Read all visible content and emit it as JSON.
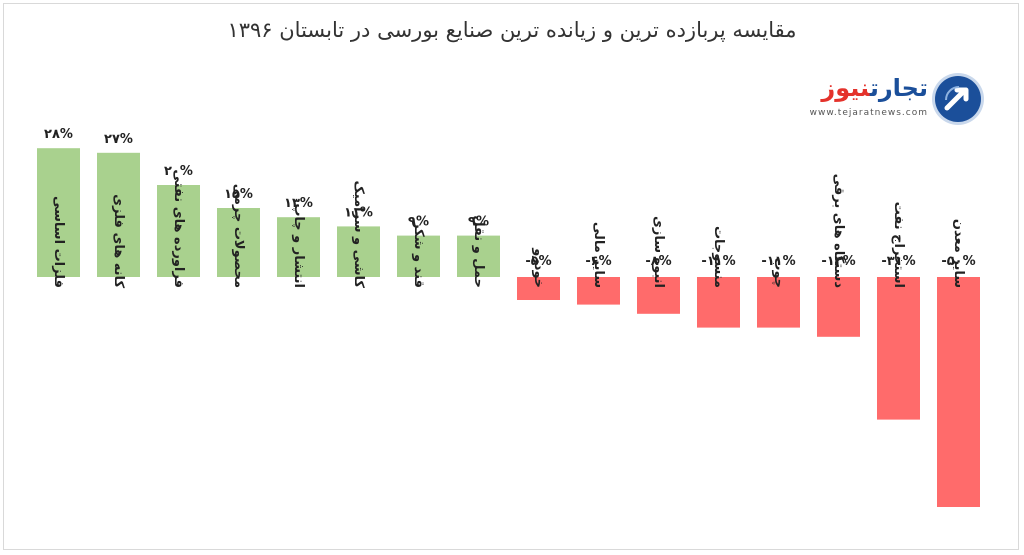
{
  "title": "مقایسه پربازده ترین و زیانده ترین صنایع بورسی در  تابستان ۱۳۹۶",
  "logo": {
    "name_part1": "تجارت",
    "name_part2": "نیوز",
    "url": "www.tejaratnews.com"
  },
  "colors": {
    "positive": "#a9d18e",
    "negative": "#ff6b6b",
    "text": "#222222",
    "brand_blue": "#1b4f9a",
    "brand_red": "#e4322b"
  },
  "chart_data": {
    "type": "bar",
    "title": "مقایسه پربازده ترین و زیانده ترین صنایع بورسی در  تابستان ۱۳۹۶",
    "xlabel": "",
    "ylabel": "",
    "grid": false,
    "legend": "none",
    "categories": [
      "فلزات اساسی",
      "کانه های فلزی",
      "فراورده های نفتی",
      "محصولات چرمی",
      "انتشار و چاپ",
      "کاشی و سرامیک",
      "قند و شکر",
      "حمل و نقل",
      "خودرو",
      "سایر مالی",
      "انبوه سازی",
      "منسوجات",
      "چوب",
      "دستگاه های برقی",
      "استخراج نفت",
      "سایر معدن"
    ],
    "values": [
      28,
      27,
      20,
      15,
      13,
      11,
      9,
      9,
      -5,
      -6,
      -8,
      -11,
      -11,
      -13,
      -31,
      -50
    ],
    "value_labels": [
      "۲۸%",
      "۲۷%",
      "۲۰%",
      "۱۵%",
      "۱۳%",
      "۱۱%",
      "۹%",
      "۹%",
      "-۵%",
      "-۶%",
      "-۸%",
      "-۱۱%",
      "-۱۱%",
      "-۱۳%",
      "-۳۱%",
      "-۵۰%"
    ]
  }
}
